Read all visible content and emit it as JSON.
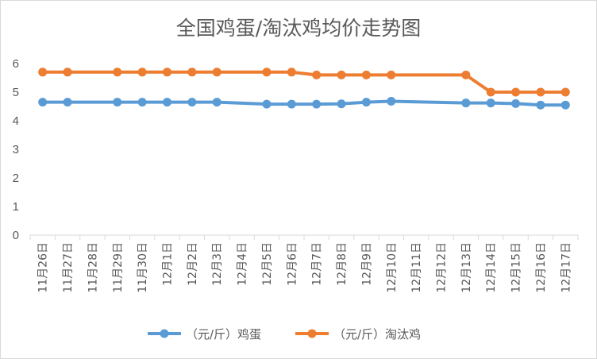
{
  "chart_data": {
    "type": "line",
    "title": "全国鸡蛋/淘汰鸡均价走势图",
    "xlabel": "",
    "ylabel": "",
    "ylim": [
      0,
      6
    ],
    "yticks": [
      0,
      1,
      2,
      3,
      4,
      5,
      6
    ],
    "grid": false,
    "legend": "bottom",
    "categories": [
      "11月26日",
      "11月27日",
      "11月28日",
      "11月29日",
      "11月30日",
      "12月1日",
      "12月2日",
      "12月3日",
      "12月4日",
      "12月5日",
      "12月6日",
      "12月7日",
      "12月8日",
      "12月9日",
      "12月10日",
      "12月11日",
      "12月12日",
      "12月13日",
      "12月14日",
      "12月15日",
      "12月16日",
      "12月17日"
    ],
    "series": [
      {
        "name": "（元/斤）鸡蛋",
        "color": "#5b9bd5",
        "values": [
          4.65,
          4.65,
          null,
          4.65,
          4.65,
          4.65,
          4.65,
          4.65,
          null,
          4.58,
          4.58,
          4.58,
          4.59,
          4.65,
          4.68,
          null,
          null,
          4.62,
          4.62,
          4.6,
          4.55,
          4.55
        ]
      },
      {
        "name": "（元/斤）淘汰鸡",
        "color": "#ed7d31",
        "values": [
          5.7,
          5.7,
          null,
          5.7,
          5.7,
          5.7,
          5.7,
          5.7,
          null,
          5.7,
          5.7,
          5.6,
          5.6,
          5.6,
          5.6,
          null,
          null,
          5.6,
          5.0,
          5.0,
          5.0,
          5.0
        ]
      }
    ]
  }
}
